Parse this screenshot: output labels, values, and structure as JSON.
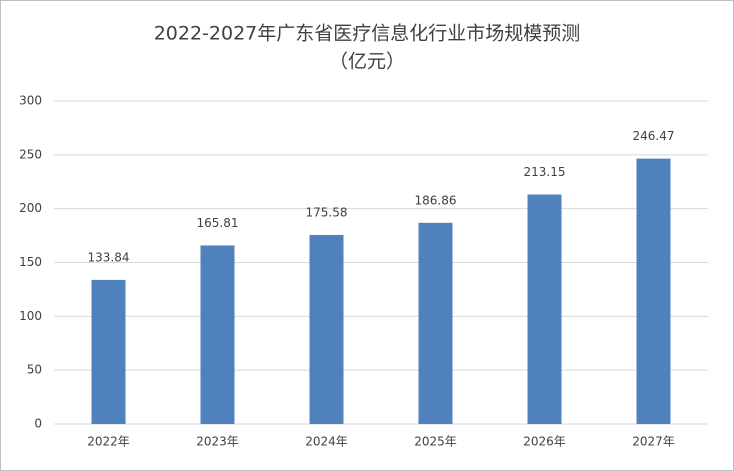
{
  "chart_data": {
    "type": "bar",
    "title": "2022-2027年广东省医疗信息化行业市场规模预测",
    "subtitle": "（亿元）",
    "categories": [
      "2022年",
      "2023年",
      "2024年",
      "2025年",
      "2026年",
      "2027年"
    ],
    "values": [
      133.84,
      165.81,
      175.58,
      186.86,
      213.15,
      246.47
    ],
    "color": "#4f81bd",
    "ylim": [
      0,
      300
    ],
    "yticks": [
      0,
      50,
      100,
      150,
      200,
      250,
      300
    ],
    "grid": true
  }
}
